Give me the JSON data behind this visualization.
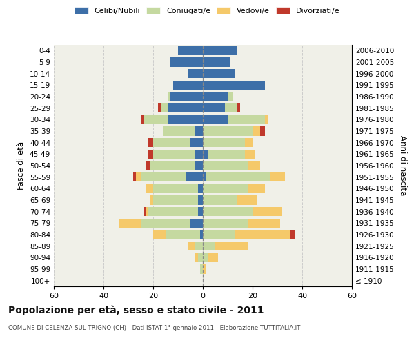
{
  "age_groups": [
    "100+",
    "95-99",
    "90-94",
    "85-89",
    "80-84",
    "75-79",
    "70-74",
    "65-69",
    "60-64",
    "55-59",
    "50-54",
    "45-49",
    "40-44",
    "35-39",
    "30-34",
    "25-29",
    "20-24",
    "15-19",
    "10-14",
    "5-9",
    "0-4"
  ],
  "birth_years": [
    "≤ 1910",
    "1911-1915",
    "1916-1920",
    "1921-1925",
    "1926-1930",
    "1931-1935",
    "1936-1940",
    "1941-1945",
    "1946-1950",
    "1951-1955",
    "1956-1960",
    "1961-1965",
    "1966-1970",
    "1971-1975",
    "1976-1980",
    "1981-1985",
    "1986-1990",
    "1991-1995",
    "1996-2000",
    "2001-2005",
    "2006-2010"
  ],
  "males": {
    "celibi": [
      0,
      0,
      0,
      0,
      1,
      5,
      2,
      2,
      2,
      7,
      3,
      3,
      5,
      3,
      14,
      14,
      13,
      12,
      6,
      13,
      10
    ],
    "coniugati": [
      0,
      1,
      2,
      3,
      14,
      20,
      20,
      18,
      18,
      18,
      18,
      17,
      15,
      13,
      10,
      3,
      1,
      0,
      0,
      0,
      0
    ],
    "vedovi": [
      0,
      0,
      1,
      3,
      5,
      9,
      1,
      1,
      3,
      2,
      0,
      0,
      0,
      0,
      0,
      0,
      0,
      0,
      0,
      0,
      0
    ],
    "divorziati": [
      0,
      0,
      0,
      0,
      0,
      0,
      1,
      0,
      0,
      1,
      2,
      2,
      2,
      0,
      1,
      1,
      0,
      0,
      0,
      0,
      0
    ]
  },
  "females": {
    "nubili": [
      0,
      0,
      0,
      0,
      0,
      0,
      0,
      0,
      0,
      1,
      0,
      2,
      0,
      0,
      10,
      9,
      10,
      25,
      13,
      11,
      14
    ],
    "coniugate": [
      0,
      0,
      2,
      5,
      13,
      18,
      20,
      14,
      18,
      26,
      18,
      15,
      17,
      20,
      15,
      5,
      2,
      0,
      0,
      0,
      0
    ],
    "vedove": [
      0,
      1,
      4,
      13,
      22,
      13,
      12,
      8,
      7,
      6,
      5,
      4,
      3,
      3,
      1,
      0,
      0,
      0,
      0,
      0,
      0
    ],
    "divorziate": [
      0,
      0,
      0,
      0,
      2,
      0,
      0,
      0,
      0,
      0,
      0,
      0,
      0,
      2,
      0,
      1,
      0,
      0,
      0,
      0,
      0
    ]
  },
  "color_celibi": "#3d6fa8",
  "color_coniugati": "#c5d9a0",
  "color_vedovi": "#f5c96a",
  "color_divorziati": "#c0392b",
  "title": "Popolazione per età, sesso e stato civile - 2011",
  "subtitle": "COMUNE DI CELENZA SUL TRIGNO (CH) - Dati ISTAT 1° gennaio 2011 - Elaborazione TUTTITALIA.IT",
  "ylabel_left": "Fasce di età",
  "ylabel_right": "Anni di nascita",
  "xlim": 60,
  "bg_color": "#ffffff",
  "grid_color": "#cccccc"
}
